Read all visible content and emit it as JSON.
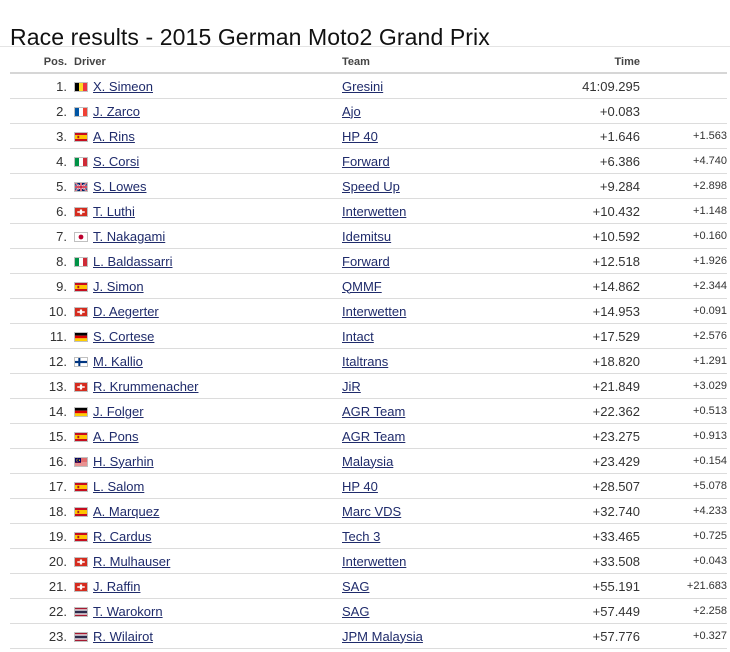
{
  "page": {
    "title": "Race results - 2015 German Moto2 Grand Prix"
  },
  "table": {
    "headers": {
      "pos": "Pos.",
      "driver": "Driver",
      "team": "Team",
      "time": "Time",
      "gap": ""
    },
    "rows": [
      {
        "pos": "1.",
        "flag": "belgium",
        "driver": "X. Simeon",
        "team": "Gresini",
        "time": "41:09.295",
        "gap": ""
      },
      {
        "pos": "2.",
        "flag": "france",
        "driver": "J. Zarco",
        "team": "Ajo",
        "time": "+0.083",
        "gap": ""
      },
      {
        "pos": "3.",
        "flag": "spain",
        "driver": "A. Rins",
        "team": "HP 40",
        "time": "+1.646",
        "gap": "+1.563"
      },
      {
        "pos": "4.",
        "flag": "italy",
        "driver": "S. Corsi",
        "team": "Forward",
        "time": "+6.386",
        "gap": "+4.740"
      },
      {
        "pos": "5.",
        "flag": "uk",
        "driver": "S. Lowes",
        "team": "Speed Up",
        "time": "+9.284",
        "gap": "+2.898"
      },
      {
        "pos": "6.",
        "flag": "switzerland",
        "driver": "T. Luthi",
        "team": "Interwetten",
        "time": "+10.432",
        "gap": "+1.148"
      },
      {
        "pos": "7.",
        "flag": "japan",
        "driver": "T. Nakagami",
        "team": "Idemitsu",
        "time": "+10.592",
        "gap": "+0.160"
      },
      {
        "pos": "8.",
        "flag": "italy",
        "driver": "L. Baldassarri",
        "team": "Forward",
        "time": "+12.518",
        "gap": "+1.926"
      },
      {
        "pos": "9.",
        "flag": "spain",
        "driver": "J. Simon",
        "team": "QMMF",
        "time": "+14.862",
        "gap": "+2.344"
      },
      {
        "pos": "10.",
        "flag": "switzerland",
        "driver": "D. Aegerter",
        "team": "Interwetten",
        "time": "+14.953",
        "gap": "+0.091"
      },
      {
        "pos": "11.",
        "flag": "germany",
        "driver": "S. Cortese",
        "team": "Intact",
        "time": "+17.529",
        "gap": "+2.576"
      },
      {
        "pos": "12.",
        "flag": "finland",
        "driver": "M. Kallio",
        "team": "Italtrans",
        "time": "+18.820",
        "gap": "+1.291"
      },
      {
        "pos": "13.",
        "flag": "switzerland",
        "driver": "R. Krummenacher",
        "team": "JiR",
        "time": "+21.849",
        "gap": "+3.029"
      },
      {
        "pos": "14.",
        "flag": "germany",
        "driver": "J. Folger",
        "team": "AGR Team",
        "time": "+22.362",
        "gap": "+0.513"
      },
      {
        "pos": "15.",
        "flag": "spain",
        "driver": "A. Pons",
        "team": "AGR Team",
        "time": "+23.275",
        "gap": "+0.913"
      },
      {
        "pos": "16.",
        "flag": "malaysia",
        "driver": "H. Syarhin",
        "team": "Malaysia",
        "time": "+23.429",
        "gap": "+0.154"
      },
      {
        "pos": "17.",
        "flag": "spain",
        "driver": "L. Salom",
        "team": "HP 40",
        "time": "+28.507",
        "gap": "+5.078"
      },
      {
        "pos": "18.",
        "flag": "spain",
        "driver": "A. Marquez",
        "team": "Marc VDS",
        "time": "+32.740",
        "gap": "+4.233"
      },
      {
        "pos": "19.",
        "flag": "spain",
        "driver": "R. Cardus",
        "team": "Tech 3",
        "time": "+33.465",
        "gap": "+0.725"
      },
      {
        "pos": "20.",
        "flag": "switzerland",
        "driver": "R. Mulhauser",
        "team": "Interwetten",
        "time": "+33.508",
        "gap": "+0.043"
      },
      {
        "pos": "21.",
        "flag": "switzerland",
        "driver": "J. Raffin",
        "team": "SAG",
        "time": "+55.191",
        "gap": "+21.683"
      },
      {
        "pos": "22.",
        "flag": "thailand",
        "driver": "T. Warokorn",
        "team": "SAG",
        "time": "+57.449",
        "gap": "+2.258"
      },
      {
        "pos": "23.",
        "flag": "thailand",
        "driver": "R. Wilairot",
        "team": "JPM Malaysia",
        "time": "+57.776",
        "gap": "+0.327"
      }
    ]
  },
  "colors": {
    "link": "#1f2b6b",
    "row_border": "#dcdcdc",
    "header_border": "#d6d6d6"
  }
}
